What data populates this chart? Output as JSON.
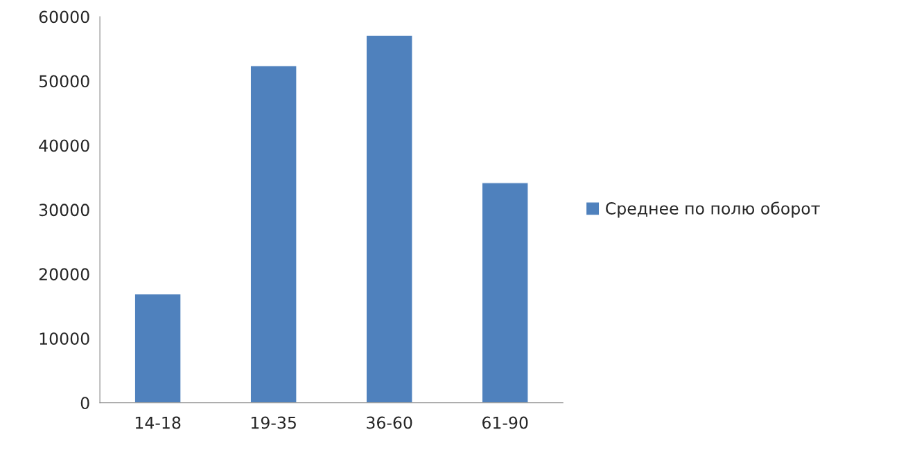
{
  "chart_data": {
    "type": "bar",
    "categories": [
      "14-18",
      "19-35",
      "36-60",
      "61-90"
    ],
    "series": [
      {
        "name": "Среднее по полю оборот",
        "color": "#4f81bd",
        "values": [
          16900,
          52400,
          57100,
          34200
        ]
      }
    ],
    "ylim": [
      0,
      60000
    ],
    "yticks": [
      0,
      10000,
      20000,
      30000,
      40000,
      50000,
      60000
    ],
    "grid": false,
    "legend": "right"
  }
}
